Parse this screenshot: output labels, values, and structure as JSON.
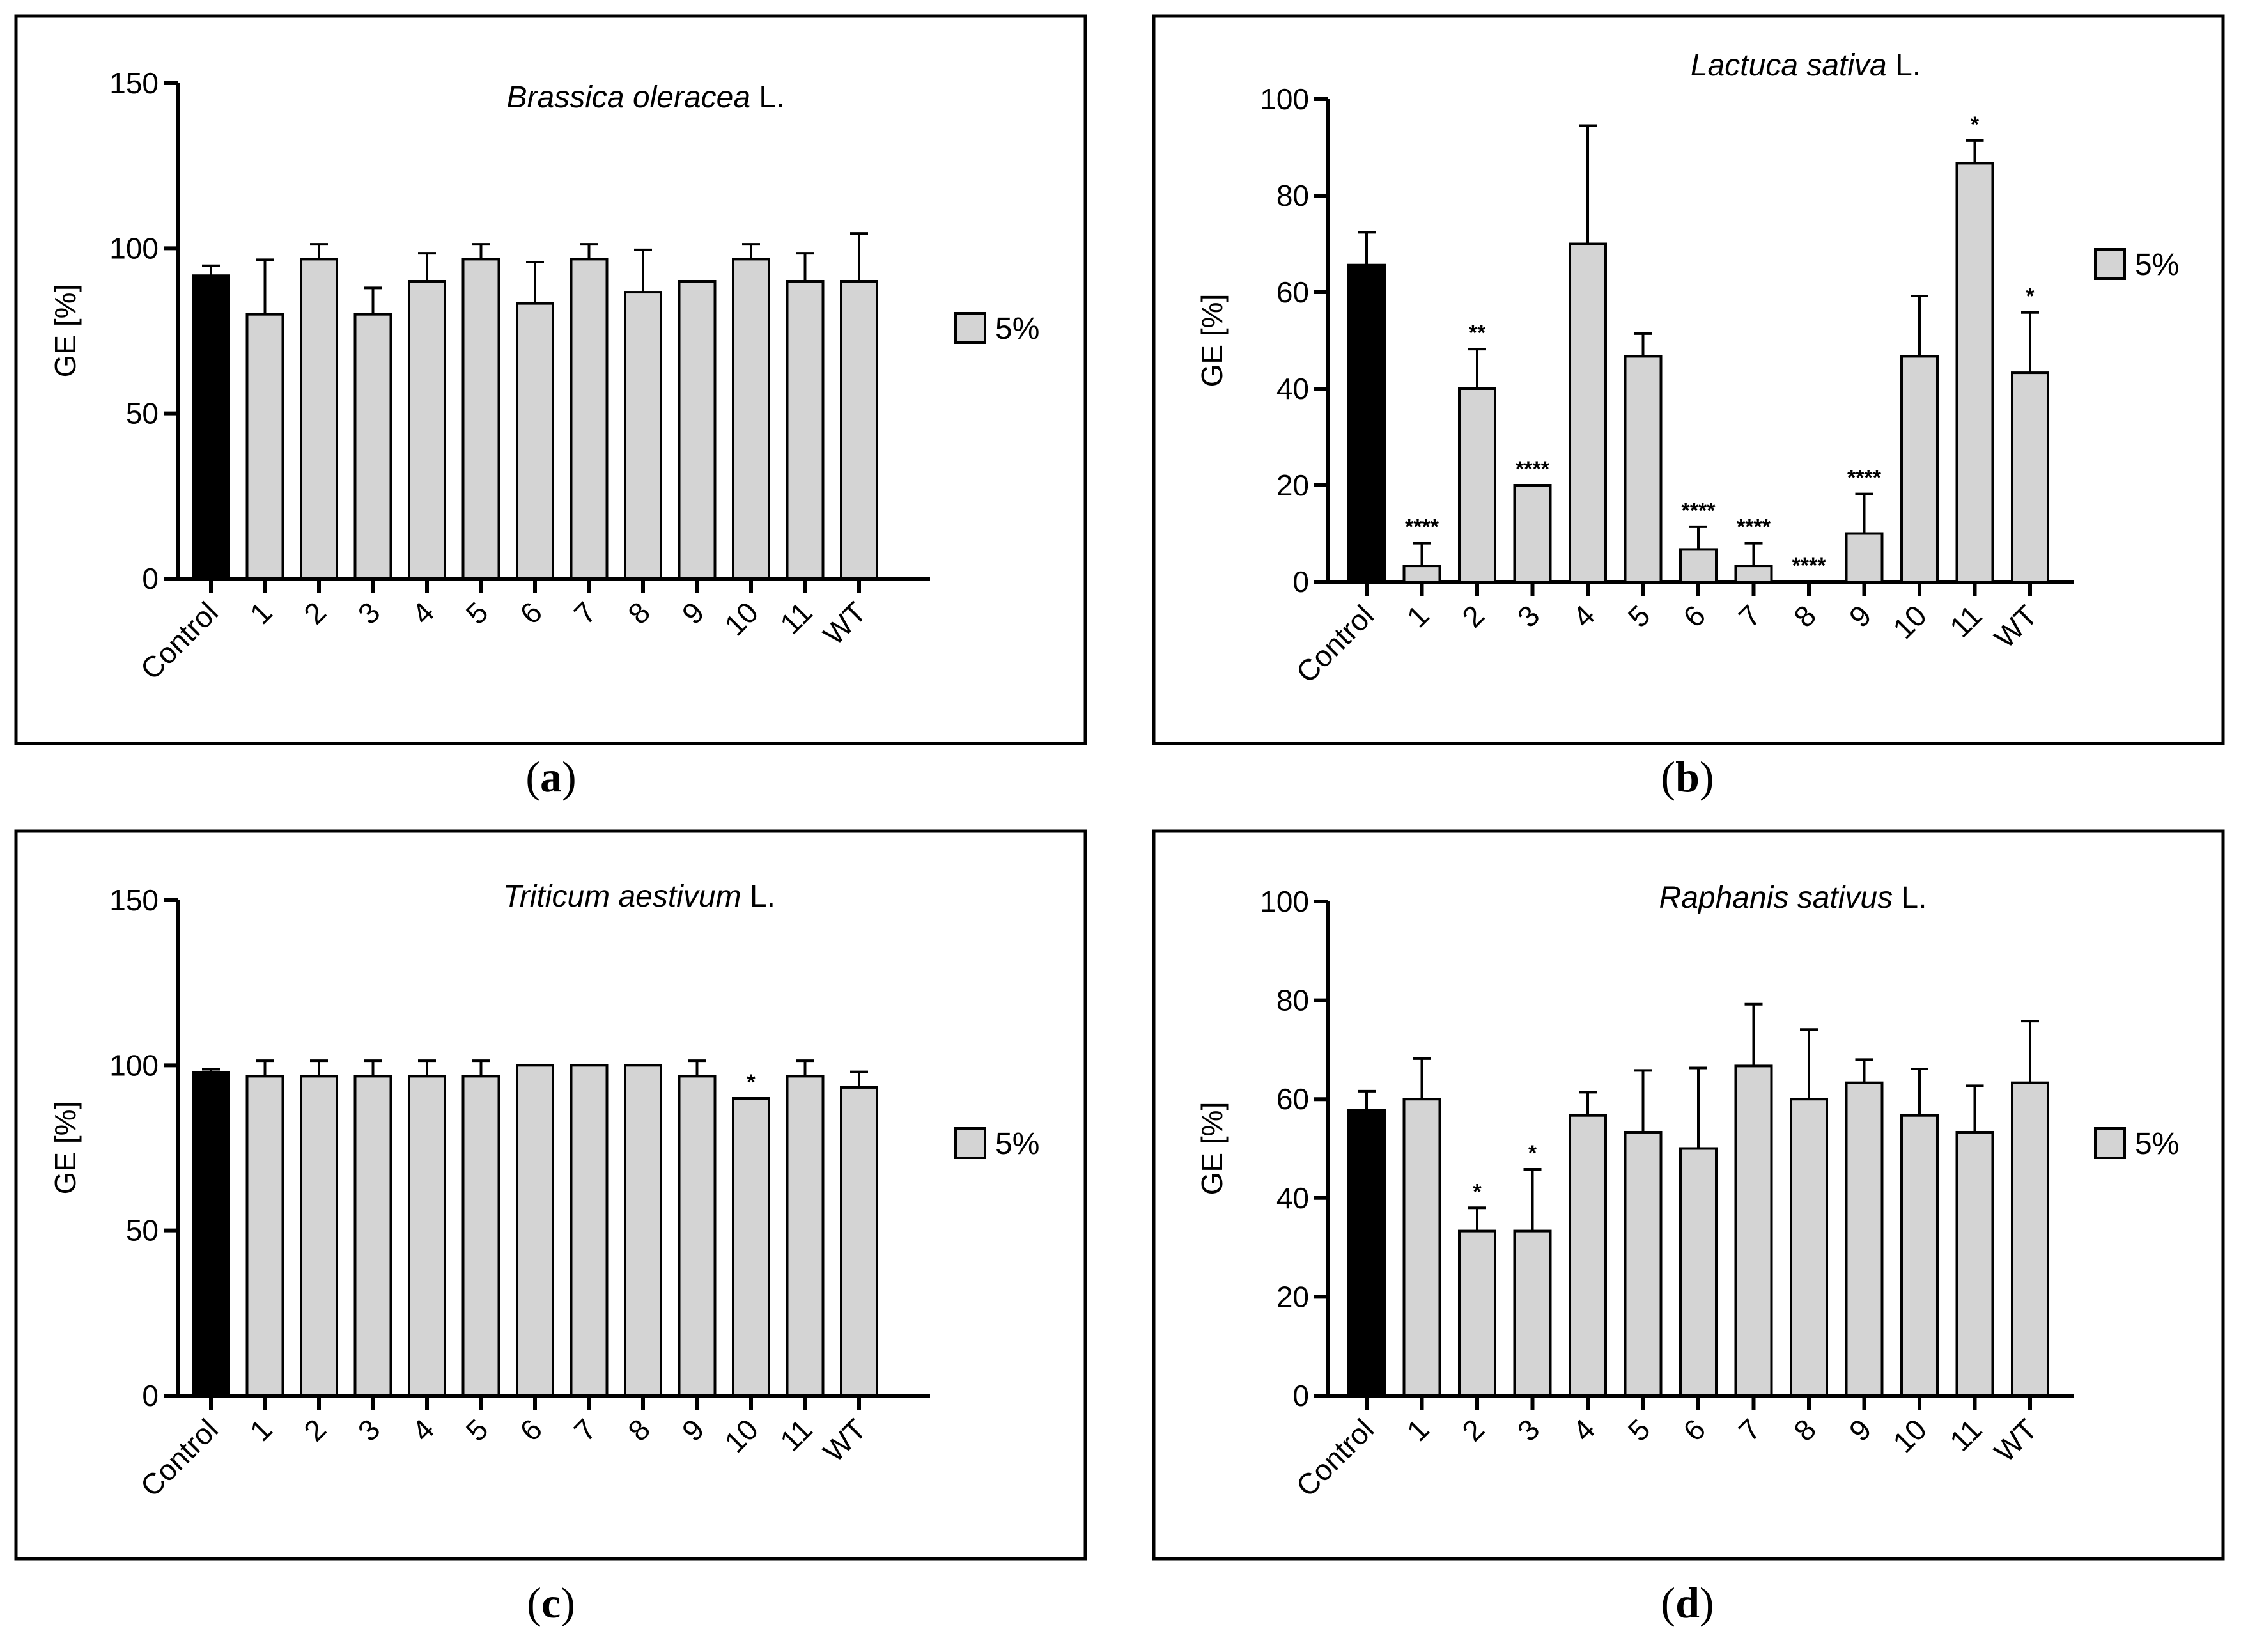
{
  "chart_data": [
    {
      "panel": "a",
      "type": "bar",
      "title_italic": "Brassica oleracea",
      "title_suffix": " L.",
      "ylabel": "GE [%]",
      "xlabel": "",
      "ylim": [
        0,
        150
      ],
      "yticks": [
        0,
        50,
        100,
        150
      ],
      "categories": [
        "Control",
        "1",
        "2",
        "3",
        "4",
        "5",
        "6",
        "7",
        "8",
        "9",
        "10",
        "11",
        "WT"
      ],
      "series": [
        {
          "name": "5%",
          "values": [
            91.7,
            80,
            96.7,
            80,
            90,
            96.7,
            83.3,
            96.7,
            86.7,
            90,
            96.7,
            90,
            90
          ],
          "errors": [
            3,
            16.5,
            4.5,
            8,
            8.5,
            4.5,
            12.5,
            4.5,
            12.8,
            0,
            4.5,
            8.5,
            14.5
          ],
          "significance": [
            "",
            "",
            "",
            "",
            "",
            "",
            "",
            "",
            "",
            "",
            "",
            "",
            ""
          ]
        }
      ],
      "legend": {
        "label": "5%",
        "position": "right"
      },
      "caption": "a"
    },
    {
      "panel": "b",
      "type": "bar",
      "title_italic": "Lactuca sativa",
      "title_suffix": " L.",
      "ylabel": "GE [%]",
      "xlabel": "",
      "ylim": [
        0,
        100
      ],
      "yticks": [
        0,
        20,
        40,
        60,
        80,
        100
      ],
      "categories": [
        "Control",
        "1",
        "2",
        "3",
        "4",
        "5",
        "6",
        "7",
        "8",
        "9",
        "10",
        "11",
        "WT"
      ],
      "series": [
        {
          "name": "5%",
          "values": [
            65.6,
            3.3,
            40,
            20,
            70,
            46.7,
            6.7,
            3.3,
            0,
            10,
            46.7,
            86.7,
            43.3
          ],
          "errors": [
            6.8,
            4.7,
            8.2,
            0,
            24.5,
            4.7,
            4.7,
            4.7,
            0,
            8.2,
            12.5,
            4.7,
            12.5
          ],
          "significance": [
            "",
            "****",
            "**",
            "****",
            "",
            "",
            "****",
            "****",
            "****",
            "****",
            "",
            "*",
            "*"
          ]
        }
      ],
      "legend": {
        "label": "5%",
        "position": "right"
      },
      "caption": "b"
    },
    {
      "panel": "c",
      "type": "bar",
      "title_italic": "Triticum aestivum",
      "title_suffix": " L.",
      "ylabel": "GE [%]",
      "xlabel": "",
      "ylim": [
        0,
        150
      ],
      "yticks": [
        0,
        50,
        100,
        150
      ],
      "categories": [
        "Control",
        "1",
        "2",
        "3",
        "4",
        "5",
        "6",
        "7",
        "8",
        "9",
        "10",
        "11",
        "WT"
      ],
      "series": [
        {
          "name": "5%",
          "values": [
            97.8,
            96.7,
            96.7,
            96.7,
            96.7,
            96.7,
            100,
            100,
            100,
            96.7,
            90,
            96.7,
            93.3
          ],
          "errors": [
            1,
            4.7,
            4.7,
            4.7,
            4.7,
            4.7,
            0,
            0,
            0,
            4.7,
            0,
            4.7,
            4.7
          ],
          "significance": [
            "",
            "",
            "",
            "",
            "",
            "",
            "",
            "",
            "",
            "",
            "*",
            "",
            ""
          ]
        }
      ],
      "legend": {
        "label": "5%",
        "position": "right"
      },
      "caption": "c"
    },
    {
      "panel": "d",
      "type": "bar",
      "title_italic": "Raphanis sativus",
      "title_suffix": " L.",
      "ylabel": "GE [%]",
      "xlabel": "",
      "ylim": [
        0,
        100
      ],
      "yticks": [
        0,
        20,
        40,
        60,
        80,
        100
      ],
      "categories": [
        "Control",
        "1",
        "2",
        "3",
        "4",
        "5",
        "6",
        "7",
        "8",
        "9",
        "10",
        "11",
        "WT"
      ],
      "series": [
        {
          "name": "5%",
          "values": [
            57.8,
            60,
            33.3,
            33.3,
            56.7,
            53.3,
            50,
            66.7,
            60,
            63.3,
            56.7,
            53.3,
            63.3
          ],
          "errors": [
            3.8,
            8.2,
            4.7,
            12.5,
            4.7,
            12.5,
            16.3,
            12.5,
            14.1,
            4.7,
            9.4,
            9.4,
            12.5
          ],
          "significance": [
            "",
            "",
            "*",
            "*",
            "",
            "",
            "",
            "",
            "",
            "",
            "",
            "",
            ""
          ]
        }
      ],
      "legend": {
        "label": "5%",
        "position": "right"
      },
      "caption": "d"
    }
  ],
  "colors": {
    "control_bar": "#000000",
    "treatment_bar": "#d4d4d4",
    "axis": "#000000",
    "background": "#ffffff"
  }
}
